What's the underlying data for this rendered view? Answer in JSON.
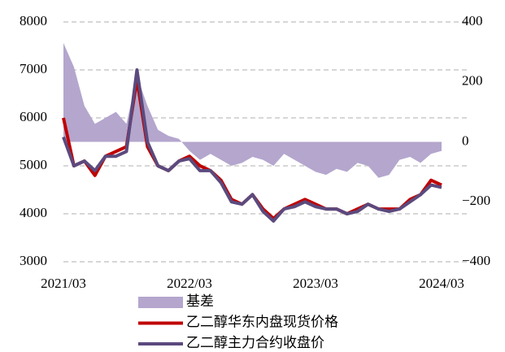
{
  "chart_data": {
    "type": "line",
    "x": [
      "2021/03",
      null,
      null,
      null,
      null,
      null,
      null,
      null,
      null,
      null,
      null,
      null,
      "2022/03",
      null,
      null,
      null,
      null,
      null,
      null,
      null,
      null,
      null,
      null,
      null,
      "2023/03",
      null,
      null,
      null,
      null,
      null,
      null,
      null,
      null,
      null,
      null,
      null,
      "2024/03"
    ],
    "series": [
      {
        "name": "基差",
        "color": "#b4a6cd",
        "type": "area",
        "axis": "y2",
        "values": [
          330,
          250,
          120,
          60,
          80,
          100,
          60,
          220,
          120,
          40,
          20,
          10,
          -30,
          -60,
          -40,
          -60,
          -80,
          -70,
          -50,
          -60,
          -80,
          -40,
          -60,
          -80,
          -100,
          -110,
          -90,
          -100,
          -70,
          -80,
          -120,
          -110,
          -60,
          -50,
          -70,
          -40,
          -30
        ]
      },
      {
        "name": "乙二醇华东内盘现货价格",
        "color": "#c00000",
        "type": "line",
        "values": [
          6000,
          5000,
          5100,
          4800,
          5200,
          5300,
          5400,
          6800,
          5400,
          5000,
          4900,
          5100,
          5200,
          5000,
          4900,
          4700,
          4300,
          4200,
          4400,
          4100,
          3900,
          4100,
          4200,
          4300,
          4200,
          4100,
          4100,
          4000,
          4100,
          4200,
          4100,
          4100,
          4100,
          4300,
          4400,
          4700,
          4600
        ]
      },
      {
        "name": "乙二醇主力合约收盘价",
        "color": "#5b4a7e",
        "type": "line",
        "values": [
          5600,
          5000,
          5100,
          4900,
          5200,
          5200,
          5300,
          7000,
          5500,
          5000,
          4900,
          5100,
          5150,
          4900,
          4900,
          4650,
          4250,
          4200,
          4400,
          4050,
          3850,
          4100,
          4150,
          4250,
          4150,
          4100,
          4100,
          4000,
          4050,
          4200,
          4100,
          4050,
          4100,
          4250,
          4400,
          4600,
          4550
        ]
      }
    ],
    "ylim": [
      3000,
      8000
    ],
    "yticks": [
      3000,
      4000,
      5000,
      6000,
      7000,
      8000
    ],
    "y2lim": [
      -400,
      400
    ],
    "y2ticks": [
      {
        "value": -400,
        "label": "−400"
      },
      {
        "value": -200,
        "label": "−200"
      },
      0,
      200,
      400
    ],
    "grid": true,
    "legend": "bottom"
  }
}
